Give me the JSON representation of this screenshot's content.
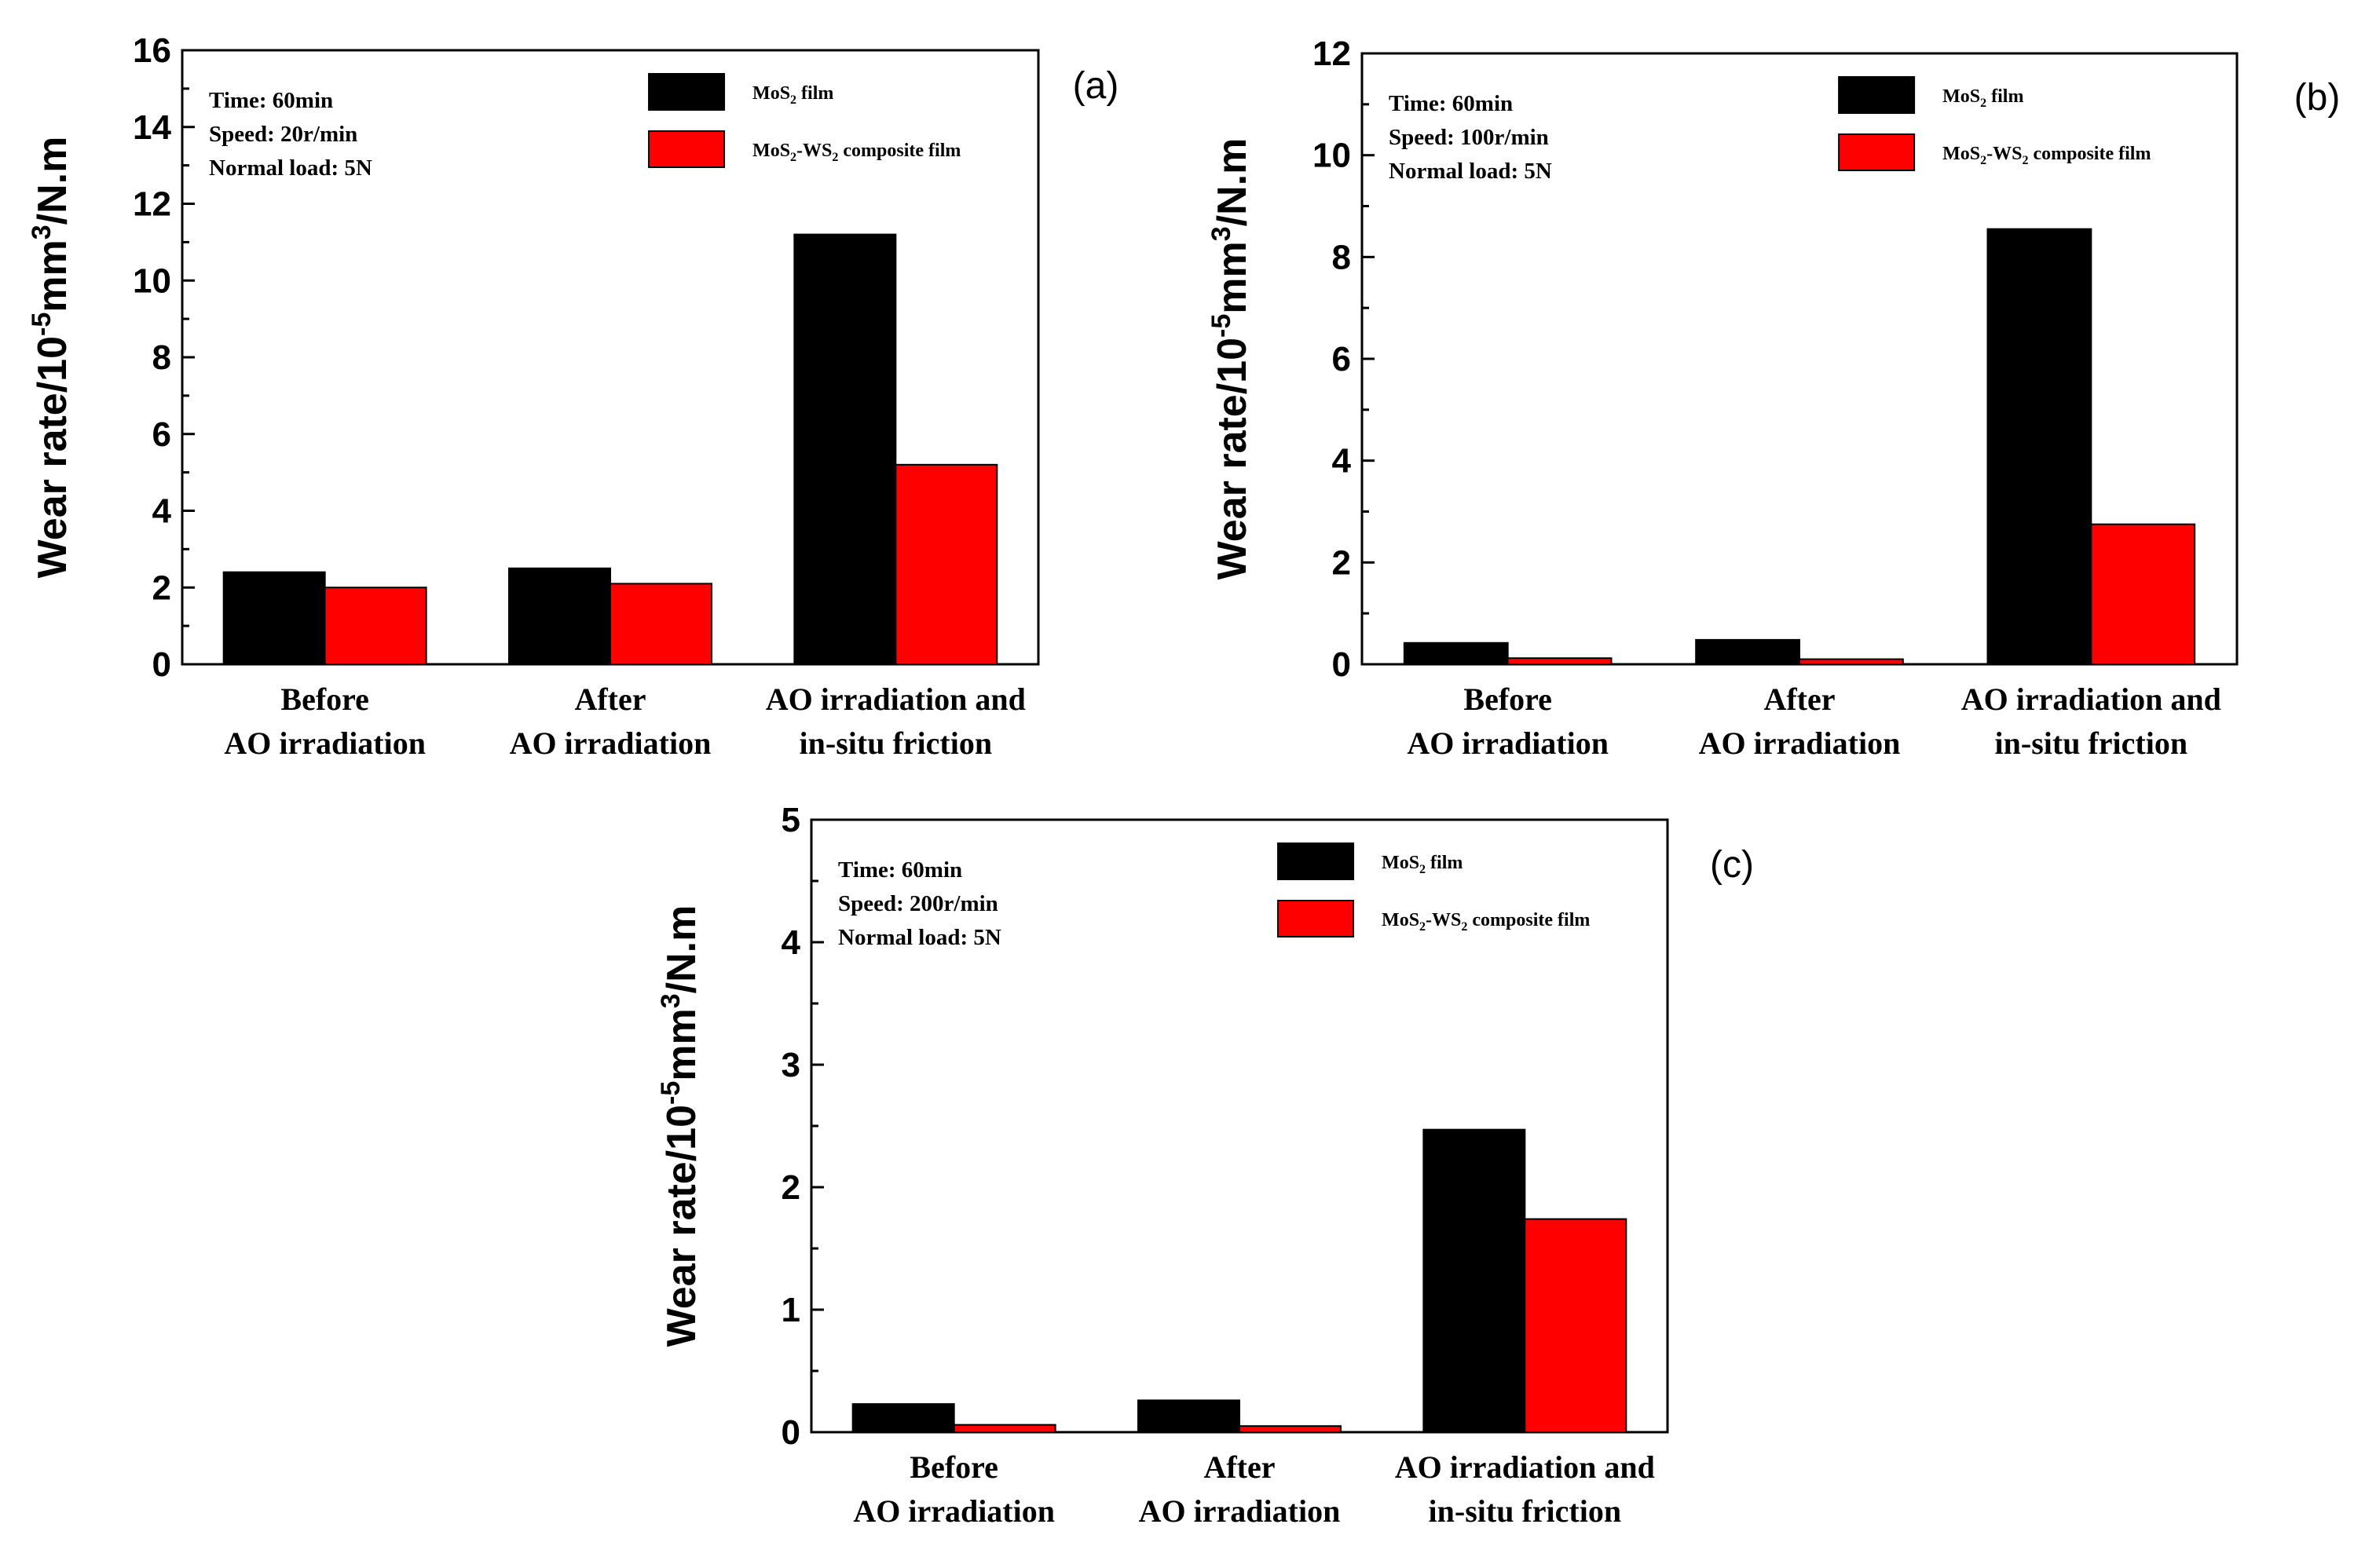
{
  "chart_data": [
    {
      "type": "bar",
      "panel_label": "(a)",
      "categories": [
        [
          "Before",
          "AO irradiation"
        ],
        [
          "After",
          "AO irradiation"
        ],
        [
          "AO irradiation and",
          "in-situ friction"
        ]
      ],
      "series": [
        {
          "name": "MoS2 film",
          "color": "#000000",
          "values": [
            2.4,
            2.5,
            11.2
          ]
        },
        {
          "name": "MoS2-WS2 composite film",
          "color": "#ff0000",
          "values": [
            2.0,
            2.1,
            5.2
          ]
        }
      ],
      "ylim": [
        0,
        16
      ],
      "yticks": [
        0,
        2,
        4,
        6,
        8,
        10,
        12,
        14,
        16
      ],
      "ylabel": "Wear rate/10-5mm3/N.m",
      "conditions": [
        "Time:  60min",
        "Speed: 20r/min",
        "Normal load: 5N"
      ],
      "legend_position": "top-right"
    },
    {
      "type": "bar",
      "panel_label": "(b)",
      "categories": [
        [
          "Before",
          "AO irradiation"
        ],
        [
          "After",
          "AO irradiation"
        ],
        [
          "AO irradiation and",
          "in-situ friction"
        ]
      ],
      "series": [
        {
          "name": "MoS2 film",
          "color": "#000000",
          "values": [
            0.42,
            0.48,
            8.55
          ]
        },
        {
          "name": "MoS2-WS2 composite film",
          "color": "#ff0000",
          "values": [
            0.12,
            0.1,
            2.75
          ]
        }
      ],
      "ylim": [
        0,
        12
      ],
      "yticks": [
        0,
        2,
        4,
        6,
        8,
        10,
        12
      ],
      "ylabel": "Wear rate/10-5mm3/N.m",
      "conditions": [
        "Time:  60min",
        "Speed: 100r/min",
        "Normal load: 5N"
      ],
      "legend_position": "top-right"
    },
    {
      "type": "bar",
      "panel_label": "(c)",
      "categories": [
        [
          "Before",
          "AO irradiation"
        ],
        [
          "After",
          "AO irradiation"
        ],
        [
          "AO irradiation and",
          "in-situ friction"
        ]
      ],
      "series": [
        {
          "name": "MoS2 film",
          "color": "#000000",
          "values": [
            0.23,
            0.26,
            2.47
          ]
        },
        {
          "name": "MoS2-WS2 composite film",
          "color": "#ff0000",
          "values": [
            0.06,
            0.05,
            1.74
          ]
        }
      ],
      "ylim": [
        0,
        5
      ],
      "yticks": [
        0,
        1,
        2,
        3,
        4,
        5
      ],
      "ylabel": "Wear rate/10-5mm3/N.m",
      "conditions": [
        "Time:   60min",
        "Speed: 200r/min",
        "Normal load: 5N"
      ],
      "legend_position": "top-right"
    }
  ]
}
